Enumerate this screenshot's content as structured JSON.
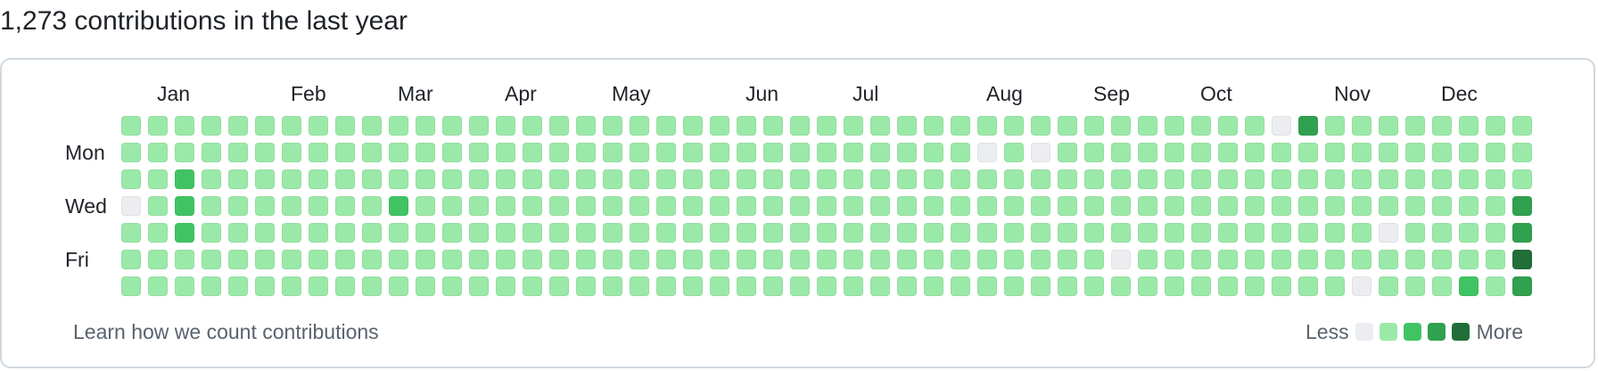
{
  "heading": "1,273 contributions in the last year",
  "months": [
    {
      "label": "Jan",
      "col": 1
    },
    {
      "label": "Feb",
      "col": 6
    },
    {
      "label": "Mar",
      "col": 10
    },
    {
      "label": "Apr",
      "col": 14
    },
    {
      "label": "May",
      "col": 18
    },
    {
      "label": "Jun",
      "col": 23
    },
    {
      "label": "Jul",
      "col": 27
    },
    {
      "label": "Aug",
      "col": 32
    },
    {
      "label": "Sep",
      "col": 36
    },
    {
      "label": "Oct",
      "col": 40
    },
    {
      "label": "Nov",
      "col": 45
    },
    {
      "label": "Dec",
      "col": 49
    }
  ],
  "day_labels": [
    {
      "label": "Mon",
      "row": 1
    },
    {
      "label": "Wed",
      "row": 3
    },
    {
      "label": "Fri",
      "row": 5
    }
  ],
  "grid": {
    "columns": 53,
    "rows": 7,
    "default_level": 1,
    "overrides": [
      {
        "col": 0,
        "row": 3,
        "level": 0
      },
      {
        "col": 2,
        "row": 2,
        "level": 2
      },
      {
        "col": 2,
        "row": 3,
        "level": 2
      },
      {
        "col": 2,
        "row": 4,
        "level": 2
      },
      {
        "col": 10,
        "row": 3,
        "level": 2
      },
      {
        "col": 32,
        "row": 1,
        "level": 0
      },
      {
        "col": 34,
        "row": 1,
        "level": 0
      },
      {
        "col": 37,
        "row": 5,
        "level": 0
      },
      {
        "col": 43,
        "row": 0,
        "level": 0
      },
      {
        "col": 44,
        "row": 0,
        "level": 3
      },
      {
        "col": 46,
        "row": 6,
        "level": 0
      },
      {
        "col": 47,
        "row": 4,
        "level": 0
      },
      {
        "col": 50,
        "row": 6,
        "level": 2
      },
      {
        "col": 52,
        "row": 3,
        "level": 3
      },
      {
        "col": 52,
        "row": 4,
        "level": 3
      },
      {
        "col": 52,
        "row": 5,
        "level": 4
      },
      {
        "col": 52,
        "row": 6,
        "level": 3
      }
    ]
  },
  "level_colors": [
    "#ebedf0",
    "#9be9a8",
    "#40c463",
    "#30a14e",
    "#216e39"
  ],
  "footer": {
    "learn_link": "Learn how we count contributions",
    "legend_less": "Less",
    "legend_more": "More"
  }
}
